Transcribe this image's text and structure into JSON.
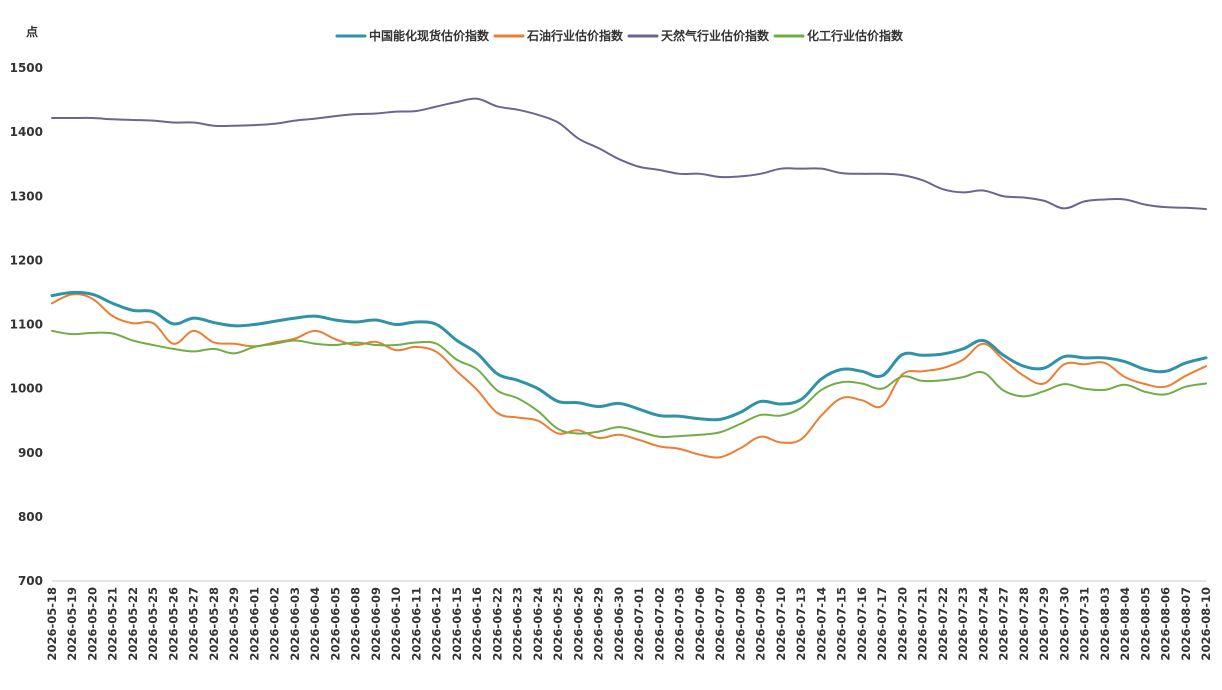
{
  "chart_data": {
    "type": "line",
    "ylabel": "点",
    "ylim": [
      700,
      1500
    ],
    "yticks": [
      700,
      800,
      900,
      1000,
      1100,
      1200,
      1300,
      1400,
      1500
    ],
    "grid": false,
    "legend_position": "top-center",
    "categories": [
      "2026-05-18",
      "2026-05-19",
      "2026-05-20",
      "2026-05-21",
      "2026-05-22",
      "2026-05-25",
      "2026-05-26",
      "2026-05-27",
      "2026-05-28",
      "2026-05-29",
      "2026-06-01",
      "2026-06-02",
      "2026-06-03",
      "2026-06-04",
      "2026-06-05",
      "2026-06-08",
      "2026-06-09",
      "2026-06-10",
      "2026-06-11",
      "2026-06-12",
      "2026-06-15",
      "2026-06-16",
      "2026-06-22",
      "2026-06-23",
      "2026-06-24",
      "2026-06-25",
      "2026-06-26",
      "2026-06-29",
      "2026-06-30",
      "2026-07-01",
      "2026-07-02",
      "2026-07-03",
      "2026-07-06",
      "2026-07-07",
      "2026-07-08",
      "2026-07-09",
      "2026-07-10",
      "2026-07-13",
      "2026-07-14",
      "2026-07-15",
      "2026-07-16",
      "2026-07-17",
      "2026-07-20",
      "2026-07-21",
      "2026-07-22",
      "2026-07-23",
      "2026-07-24",
      "2026-07-27",
      "2026-07-28",
      "2026-07-29",
      "2026-07-30",
      "2026-07-31",
      "2026-08-03",
      "2026-08-04",
      "2026-08-05",
      "2026-08-06",
      "2026-08-07",
      "2026-08-10"
    ],
    "series": [
      {
        "name": "中国能化现货估价指数",
        "color": "#2E93A6",
        "values": [
          1145,
          1150,
          1147,
          1133,
          1122,
          1120,
          1101,
          1110,
          1103,
          1098,
          1100,
          1105,
          1110,
          1113,
          1107,
          1104,
          1107,
          1100,
          1104,
          1100,
          1075,
          1055,
          1023,
          1013,
          1000,
          980,
          978,
          972,
          977,
          968,
          958,
          957,
          953,
          952,
          963,
          980,
          976,
          983,
          1015,
          1030,
          1027,
          1020,
          1053,
          1052,
          1054,
          1062,
          1075,
          1052,
          1035,
          1032,
          1050,
          1048,
          1048,
          1042,
          1030,
          1027,
          1040,
          1048
        ]
      },
      {
        "name": "石油行业估价指数",
        "color": "#ED7D31",
        "values": [
          1133,
          1147,
          1140,
          1113,
          1102,
          1102,
          1070,
          1090,
          1072,
          1070,
          1066,
          1072,
          1078,
          1090,
          1077,
          1068,
          1073,
          1060,
          1065,
          1057,
          1027,
          998,
          962,
          955,
          950,
          930,
          935,
          923,
          928,
          920,
          910,
          906,
          897,
          893,
          907,
          925,
          916,
          921,
          958,
          985,
          982,
          973,
          1022,
          1027,
          1032,
          1045,
          1070,
          1045,
          1020,
          1008,
          1038,
          1038,
          1040,
          1018,
          1007,
          1003,
          1020,
          1035
        ]
      },
      {
        "name": "天然气行业估价指数",
        "color": "#6B6690",
        "values": [
          1422,
          1422,
          1422,
          1420,
          1419,
          1418,
          1415,
          1415,
          1410,
          1410,
          1411,
          1413,
          1418,
          1421,
          1425,
          1428,
          1429,
          1432,
          1433,
          1440,
          1447,
          1452,
          1440,
          1435,
          1427,
          1415,
          1390,
          1375,
          1358,
          1346,
          1341,
          1335,
          1335,
          1330,
          1331,
          1335,
          1343,
          1343,
          1343,
          1336,
          1335,
          1335,
          1333,
          1325,
          1311,
          1306,
          1309,
          1300,
          1298,
          1293,
          1281,
          1292,
          1295,
          1295,
          1287,
          1283,
          1282,
          1280
        ]
      },
      {
        "name": "化工行业估价指数",
        "color": "#70AD47",
        "values": [
          1090,
          1085,
          1087,
          1086,
          1075,
          1068,
          1062,
          1058,
          1062,
          1055,
          1065,
          1070,
          1075,
          1070,
          1068,
          1072,
          1068,
          1068,
          1072,
          1070,
          1045,
          1030,
          997,
          985,
          965,
          937,
          930,
          933,
          940,
          933,
          925,
          926,
          928,
          932,
          945,
          959,
          958,
          970,
          998,
          1010,
          1008,
          1000,
          1019,
          1012,
          1013,
          1018,
          1025,
          997,
          988,
          996,
          1007,
          1000,
          998,
          1006,
          995,
          991,
          1003,
          1008
        ]
      }
    ]
  }
}
